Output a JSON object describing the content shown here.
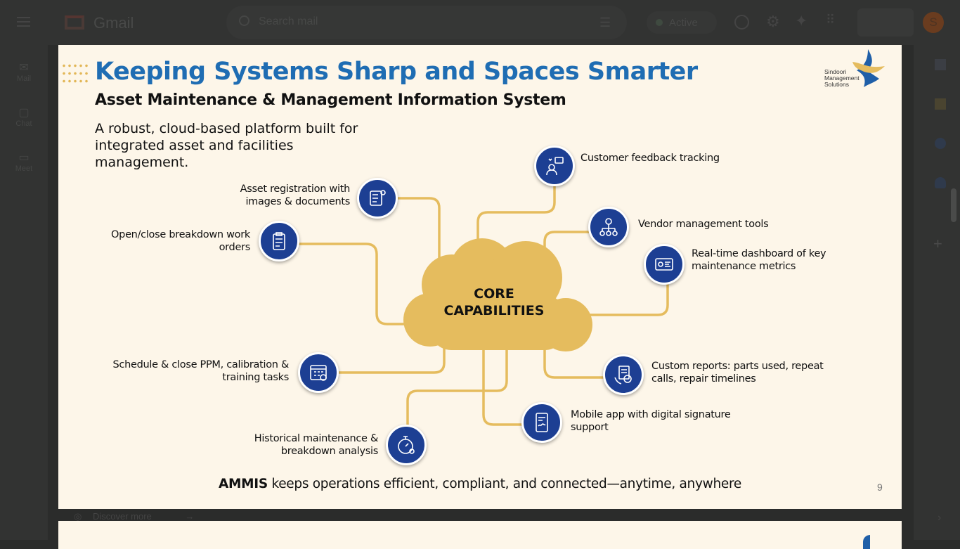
{
  "gmail": {
    "app_name": "Gmail",
    "search_placeholder": "Search mail",
    "status": "Active",
    "avatar_letter": "S",
    "rail": [
      {
        "label": "Mail"
      },
      {
        "label": "Chat"
      },
      {
        "label": "Meet"
      }
    ],
    "discover_more": "Discover more"
  },
  "slide": {
    "title": "Keeping Systems Sharp and Spaces Smarter",
    "subtitle": "Asset Maintenance & Management Information System",
    "description": "A robust, cloud-based platform built for integrated asset and facilities management.",
    "logo_text": "Sindoori Management Solutions",
    "center": {
      "line1": "CORE",
      "line2": "CAPABILITIES"
    },
    "capabilities": [
      {
        "label": "Asset registration with images & documents",
        "icon": "checklist-gear-icon"
      },
      {
        "label": "Open/close breakdown work orders",
        "icon": "clipboard-icon"
      },
      {
        "label": "Customer feedback tracking",
        "icon": "feedback-icon"
      },
      {
        "label": "Vendor management tools",
        "icon": "vendor-network-icon"
      },
      {
        "label": "Real-time dashboard of key maintenance metrics",
        "icon": "dashboard-icon"
      },
      {
        "label": "Schedule & close PPM, calibration & training tasks",
        "icon": "calendar-icon"
      },
      {
        "label": "Custom reports: parts used, repeat calls, repair timelines",
        "icon": "report-phone-icon"
      },
      {
        "label": "Mobile app with digital signature support",
        "icon": "mobile-signature-icon"
      },
      {
        "label": "Historical maintenance & breakdown analysis",
        "icon": "stopwatch-icon"
      }
    ],
    "footer_bold": "AMMIS",
    "footer_rest": " keeps operations efficient, compliant, and connected—anytime, anywhere",
    "page_number": "9",
    "colors": {
      "title": "#1f6db3",
      "icon_bg": "#1d3f93",
      "cloud": "#e5bc5e",
      "background": "#fdf6e9"
    }
  }
}
